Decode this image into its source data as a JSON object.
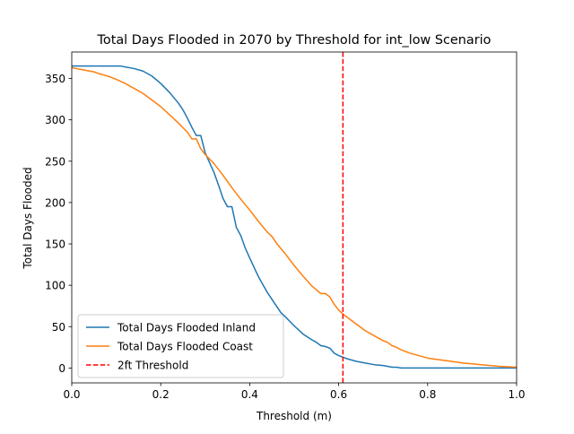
{
  "chart_data": {
    "type": "line",
    "title": "Total Days Flooded in 2070 by Threshold for int_low Scenario",
    "xlabel": "Threshold (m)",
    "ylabel": "Total Days Flooded",
    "xlim": [
      0,
      1.0
    ],
    "ylim": [
      -18,
      382
    ],
    "xticks": [
      0.0,
      0.2,
      0.4,
      0.6,
      0.8,
      1.0
    ],
    "xtick_labels": [
      "0.0",
      "0.2",
      "0.4",
      "0.6",
      "0.8",
      "1.0"
    ],
    "yticks": [
      0,
      50,
      100,
      150,
      200,
      250,
      300,
      350
    ],
    "ytick_labels": [
      "0",
      "50",
      "100",
      "150",
      "200",
      "250",
      "300",
      "350"
    ],
    "grid": false,
    "legend_position": "lower-left",
    "series": [
      {
        "name": "Total Days Flooded Inland",
        "color": "#1f77b4",
        "style": "solid",
        "x": [
          0.0,
          0.02,
          0.04,
          0.06,
          0.08,
          0.1,
          0.11,
          0.12,
          0.14,
          0.16,
          0.18,
          0.2,
          0.22,
          0.24,
          0.25,
          0.26,
          0.27,
          0.28,
          0.29,
          0.3,
          0.31,
          0.32,
          0.33,
          0.34,
          0.35,
          0.36,
          0.37,
          0.38,
          0.39,
          0.4,
          0.42,
          0.44,
          0.46,
          0.47,
          0.48,
          0.5,
          0.52,
          0.54,
          0.55,
          0.56,
          0.57,
          0.58,
          0.59,
          0.6,
          0.61,
          0.62,
          0.64,
          0.66,
          0.68,
          0.7,
          0.72,
          0.73,
          0.74,
          0.76,
          0.8,
          0.9,
          1.0
        ],
        "y": [
          365,
          365,
          365,
          365,
          365,
          365,
          365,
          364,
          362,
          359,
          353,
          344,
          333,
          320,
          312,
          302,
          291,
          281,
          281,
          260,
          248,
          236,
          221,
          205,
          195,
          195,
          170,
          160,
          145,
          133,
          110,
          91,
          75,
          67,
          62,
          51,
          41,
          34,
          31,
          27,
          26,
          24,
          18,
          15,
          13,
          11,
          8,
          6,
          4,
          3,
          1,
          1,
          0,
          0,
          0,
          0,
          0
        ]
      },
      {
        "name": "Total Days Flooded Coast",
        "color": "#ff7f0e",
        "style": "solid",
        "x": [
          0.0,
          0.01,
          0.02,
          0.04,
          0.05,
          0.06,
          0.08,
          0.1,
          0.12,
          0.14,
          0.16,
          0.18,
          0.2,
          0.22,
          0.24,
          0.26,
          0.27,
          0.28,
          0.29,
          0.3,
          0.32,
          0.34,
          0.36,
          0.38,
          0.4,
          0.42,
          0.44,
          0.45,
          0.46,
          0.48,
          0.5,
          0.52,
          0.54,
          0.56,
          0.57,
          0.58,
          0.59,
          0.6,
          0.61,
          0.62,
          0.64,
          0.66,
          0.68,
          0.7,
          0.71,
          0.72,
          0.73,
          0.74,
          0.76,
          0.78,
          0.8,
          0.84,
          0.88,
          0.9,
          0.92,
          0.94,
          0.96,
          1.0
        ],
        "y": [
          363,
          362,
          361,
          359,
          358,
          356,
          353,
          349,
          344,
          338,
          332,
          324,
          316,
          306,
          296,
          285,
          277,
          277,
          265,
          258,
          247,
          233,
          218,
          204,
          191,
          177,
          164,
          159,
          151,
          138,
          124,
          111,
          99,
          90,
          90,
          86,
          77,
          70,
          65,
          61,
          53,
          45,
          39,
          33,
          31,
          27,
          25,
          22,
          18,
          15,
          12,
          9,
          6,
          5,
          4,
          3,
          2,
          1
        ]
      },
      {
        "name": "2ft Threshold",
        "color": "#ff0000",
        "style": "dashed",
        "x_value": 0.6096
      }
    ]
  }
}
